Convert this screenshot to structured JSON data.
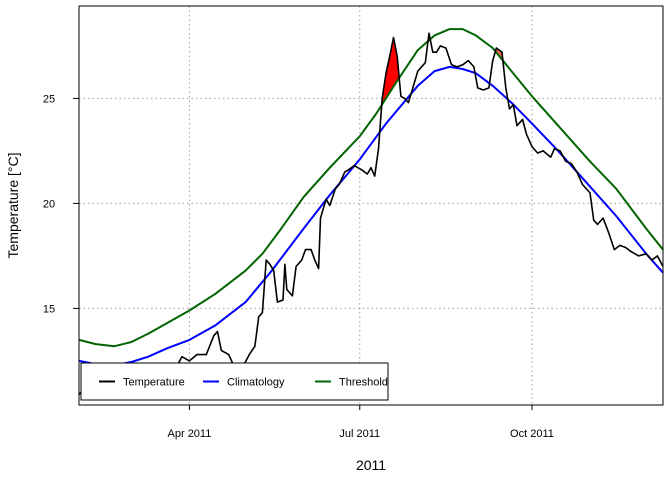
{
  "chart_data": {
    "type": "line",
    "xlabel": "2011",
    "ylabel": "Temperature [°C]",
    "xlim": [
      "2011-02-01",
      "2011-12-10"
    ],
    "ylim": [
      10.4,
      29.4
    ],
    "x_ticks": [
      {
        "date": "2011-04-01",
        "label": "Apr 2011"
      },
      {
        "date": "2011-07-01",
        "label": "Jul 2011"
      },
      {
        "date": "2011-10-01",
        "label": "Oct 2011"
      }
    ],
    "y_ticks": [
      15,
      20,
      25
    ],
    "grid": true,
    "legend": {
      "position": "bottom-left",
      "entries": [
        {
          "label": "Temperature",
          "color": "#000000"
        },
        {
          "label": "Climatology",
          "color": "#0000ff"
        },
        {
          "label": "Threshold",
          "color": "#006400"
        }
      ]
    },
    "series": [
      {
        "name": "Threshold",
        "color": "#006400",
        "points": [
          [
            "2011-02-01",
            13.5
          ],
          [
            "2011-02-10",
            13.3
          ],
          [
            "2011-02-20",
            13.2
          ],
          [
            "2011-03-01",
            13.4
          ],
          [
            "2011-03-10",
            13.8
          ],
          [
            "2011-03-20",
            14.3
          ],
          [
            "2011-04-01",
            14.9
          ],
          [
            "2011-04-15",
            15.7
          ],
          [
            "2011-05-01",
            16.8
          ],
          [
            "2011-05-10",
            17.6
          ],
          [
            "2011-05-20",
            18.8
          ],
          [
            "2011-06-01",
            20.3
          ],
          [
            "2011-06-15",
            21.7
          ],
          [
            "2011-07-01",
            23.2
          ],
          [
            "2011-07-10",
            24.3
          ],
          [
            "2011-07-20",
            25.7
          ],
          [
            "2011-08-01",
            27.3
          ],
          [
            "2011-08-10",
            28.0
          ],
          [
            "2011-08-18",
            28.3
          ],
          [
            "2011-08-25",
            28.3
          ],
          [
            "2011-09-01",
            28.0
          ],
          [
            "2011-09-10",
            27.4
          ],
          [
            "2011-09-20",
            26.3
          ],
          [
            "2011-10-01",
            25.1
          ],
          [
            "2011-10-15",
            23.7
          ],
          [
            "2011-11-01",
            22.0
          ],
          [
            "2011-11-15",
            20.7
          ],
          [
            "2011-12-01",
            18.8
          ],
          [
            "2011-12-10",
            17.8
          ]
        ]
      },
      {
        "name": "Climatology",
        "color": "#0000ff",
        "points": [
          [
            "2011-02-01",
            12.5
          ],
          [
            "2011-02-10",
            12.35
          ],
          [
            "2011-02-20",
            12.3
          ],
          [
            "2011-03-01",
            12.45
          ],
          [
            "2011-03-10",
            12.7
          ],
          [
            "2011-03-20",
            13.1
          ],
          [
            "2011-04-01",
            13.5
          ],
          [
            "2011-04-15",
            14.2
          ],
          [
            "2011-05-01",
            15.3
          ],
          [
            "2011-05-15",
            16.8
          ],
          [
            "2011-06-01",
            18.8
          ],
          [
            "2011-06-15",
            20.4
          ],
          [
            "2011-07-01",
            22.1
          ],
          [
            "2011-07-15",
            23.8
          ],
          [
            "2011-08-01",
            25.6
          ],
          [
            "2011-08-10",
            26.3
          ],
          [
            "2011-08-18",
            26.5
          ],
          [
            "2011-08-25",
            26.4
          ],
          [
            "2011-09-01",
            26.2
          ],
          [
            "2011-09-10",
            25.6
          ],
          [
            "2011-09-20",
            24.8
          ],
          [
            "2011-10-01",
            23.8
          ],
          [
            "2011-10-15",
            22.5
          ],
          [
            "2011-11-01",
            20.8
          ],
          [
            "2011-11-15",
            19.4
          ],
          [
            "2011-12-01",
            17.6
          ],
          [
            "2011-12-10",
            16.7
          ]
        ]
      },
      {
        "name": "Temperature",
        "color": "#000000",
        "points": [
          [
            "2011-02-01",
            10.9
          ],
          [
            "2011-02-05",
            11.3
          ],
          [
            "2011-02-10",
            11.1
          ],
          [
            "2011-02-15",
            10.9
          ],
          [
            "2011-02-20",
            11.0
          ],
          [
            "2011-02-25",
            10.9
          ],
          [
            "2011-03-01",
            11.0
          ],
          [
            "2011-03-05",
            11.2
          ],
          [
            "2011-03-10",
            11.0
          ],
          [
            "2011-03-15",
            11.3
          ],
          [
            "2011-03-20",
            11.5
          ],
          [
            "2011-03-25",
            12.2
          ],
          [
            "2011-03-28",
            12.7
          ],
          [
            "2011-04-01",
            12.5
          ],
          [
            "2011-04-05",
            12.8
          ],
          [
            "2011-04-10",
            12.8
          ],
          [
            "2011-04-14",
            13.7
          ],
          [
            "2011-04-16",
            13.9
          ],
          [
            "2011-04-18",
            13.0
          ],
          [
            "2011-04-22",
            12.8
          ],
          [
            "2011-04-25",
            12.2
          ],
          [
            "2011-04-27",
            11.6
          ],
          [
            "2011-04-30",
            12.3
          ],
          [
            "2011-05-03",
            12.8
          ],
          [
            "2011-05-06",
            13.2
          ],
          [
            "2011-05-08",
            14.6
          ],
          [
            "2011-05-10",
            14.8
          ],
          [
            "2011-05-12",
            17.3
          ],
          [
            "2011-05-14",
            17.1
          ],
          [
            "2011-05-16",
            16.8
          ],
          [
            "2011-05-18",
            15.3
          ],
          [
            "2011-05-21",
            15.4
          ],
          [
            "2011-05-22",
            17.1
          ],
          [
            "2011-05-23",
            15.9
          ],
          [
            "2011-05-26",
            15.6
          ],
          [
            "2011-05-28",
            17.0
          ],
          [
            "2011-05-31",
            17.3
          ],
          [
            "2011-06-02",
            17.8
          ],
          [
            "2011-06-05",
            17.8
          ],
          [
            "2011-06-07",
            17.3
          ],
          [
            "2011-06-09",
            16.9
          ],
          [
            "2011-06-10",
            19.3
          ],
          [
            "2011-06-13",
            20.2
          ],
          [
            "2011-06-15",
            19.9
          ],
          [
            "2011-06-18",
            20.7
          ],
          [
            "2011-06-20",
            20.9
          ],
          [
            "2011-06-23",
            21.5
          ],
          [
            "2011-06-25",
            21.6
          ],
          [
            "2011-06-28",
            21.8
          ],
          [
            "2011-07-02",
            21.6
          ],
          [
            "2011-07-05",
            21.4
          ],
          [
            "2011-07-07",
            21.7
          ],
          [
            "2011-07-09",
            21.3
          ],
          [
            "2011-07-11",
            22.6
          ],
          [
            "2011-07-13",
            25.0
          ],
          [
            "2011-07-15",
            26.2
          ],
          [
            "2011-07-17",
            27.0
          ],
          [
            "2011-07-19",
            27.9
          ],
          [
            "2011-07-21",
            27.0
          ],
          [
            "2011-07-23",
            25.1
          ],
          [
            "2011-07-25",
            25.0
          ],
          [
            "2011-07-27",
            24.8
          ],
          [
            "2011-07-29",
            25.4
          ],
          [
            "2011-08-01",
            26.3
          ],
          [
            "2011-08-03",
            26.5
          ],
          [
            "2011-08-05",
            26.7
          ],
          [
            "2011-08-07",
            28.1
          ],
          [
            "2011-08-09",
            27.2
          ],
          [
            "2011-08-11",
            27.2
          ],
          [
            "2011-08-13",
            27.5
          ],
          [
            "2011-08-16",
            27.4
          ],
          [
            "2011-08-19",
            26.6
          ],
          [
            "2011-08-22",
            26.5
          ],
          [
            "2011-08-25",
            26.6
          ],
          [
            "2011-08-28",
            26.8
          ],
          [
            "2011-08-31",
            26.5
          ],
          [
            "2011-09-02",
            25.5
          ],
          [
            "2011-09-05",
            25.4
          ],
          [
            "2011-09-08",
            25.5
          ],
          [
            "2011-09-10",
            26.8
          ],
          [
            "2011-09-12",
            27.4
          ],
          [
            "2011-09-15",
            27.2
          ],
          [
            "2011-09-17",
            25.5
          ],
          [
            "2011-09-19",
            24.5
          ],
          [
            "2011-09-21",
            24.7
          ],
          [
            "2011-09-23",
            23.7
          ],
          [
            "2011-09-26",
            24.0
          ],
          [
            "2011-09-28",
            23.3
          ],
          [
            "2011-10-01",
            22.7
          ],
          [
            "2011-10-04",
            22.4
          ],
          [
            "2011-10-07",
            22.5
          ],
          [
            "2011-10-11",
            22.2
          ],
          [
            "2011-10-13",
            22.6
          ],
          [
            "2011-10-16",
            22.5
          ],
          [
            "2011-10-19",
            22.0
          ],
          [
            "2011-10-22",
            21.9
          ],
          [
            "2011-10-25",
            21.5
          ],
          [
            "2011-10-28",
            20.9
          ],
          [
            "2011-11-01",
            20.5
          ],
          [
            "2011-11-03",
            19.2
          ],
          [
            "2011-11-05",
            19.0
          ],
          [
            "2011-11-08",
            19.3
          ],
          [
            "2011-11-11",
            18.6
          ],
          [
            "2011-11-14",
            17.8
          ],
          [
            "2011-11-17",
            18.0
          ],
          [
            "2011-11-20",
            17.9
          ],
          [
            "2011-11-23",
            17.7
          ],
          [
            "2011-11-27",
            17.5
          ],
          [
            "2011-12-01",
            17.6
          ],
          [
            "2011-12-04",
            17.3
          ],
          [
            "2011-12-07",
            17.5
          ],
          [
            "2011-12-10",
            17.0
          ]
        ]
      }
    ],
    "events": [
      {
        "start": "2011-07-13",
        "end": "2011-07-22",
        "fill": "#ff0000"
      },
      {
        "start": "2011-09-10",
        "end": "2011-09-17",
        "fill": "#f06a5a"
      }
    ]
  }
}
